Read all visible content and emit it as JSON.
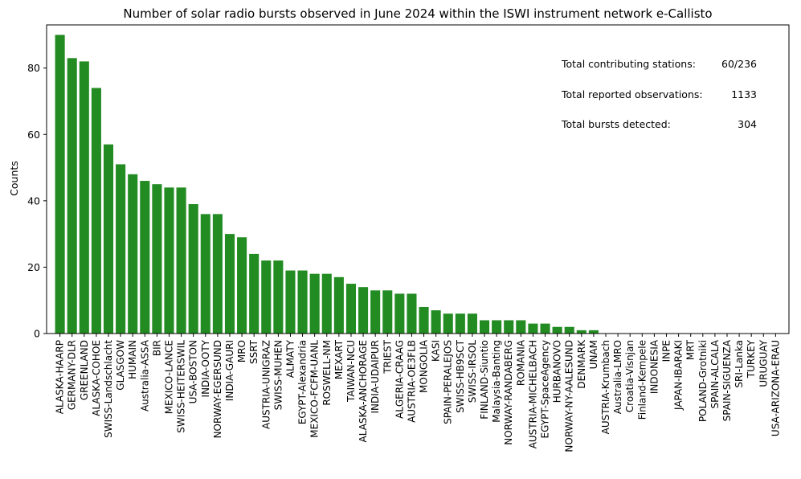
{
  "chart_data": {
    "type": "bar",
    "title": "Number of solar radio bursts observed in June 2024 within the ISWI instrument network e-Callisto",
    "xlabel": "",
    "ylabel": "Counts",
    "ylim": [
      0,
      93
    ],
    "yticks": [
      0,
      20,
      40,
      60,
      80
    ],
    "bar_color": "#228b22",
    "grid": false,
    "categories": [
      "ALASKA-HAARP",
      "GERMANY-DLR",
      "GREENLAND",
      "ALASKA-COHOE",
      "SWISS-Landschlacht",
      "GLASGOW",
      "HUMAIN",
      "Australia-ASSA",
      "BIR",
      "MEXICO-LANCE",
      "SWISS-HEITERSWIL",
      "USA-BOSTON",
      "INDIA-OOTY",
      "NORWAY-EGERSUND",
      "INDIA-GAURI",
      "MRO",
      "SSRT",
      "AUSTRIA-UNIGRAZ",
      "SWISS-MUHEN",
      "ALMATY",
      "EGYPT-Alexandria",
      "MEXICO-FCFM-UANL",
      "ROSWELL-NM",
      "MEXART",
      "TAIWAN-NCU",
      "ALASKA-ANCHORAGE",
      "INDIA-UDAIPUR",
      "TRIEST",
      "ALGERIA-CRAAG",
      "AUSTRIA-OE3FLB",
      "MONGOLIA",
      "KASI",
      "SPAIN-PERALEJOS",
      "SWISS-HB9SCT",
      "SWISS-IRSOL",
      "FINLAND-Siuntio",
      "Malaysia-Banting",
      "NORWAY-RANDABERG",
      "ROMANIA",
      "AUSTRIA-MICHELBACH",
      "EGYPT-SpaceAgency",
      "HURBANOVO",
      "NORWAY-NY-AALESUND",
      "DENMARK",
      "UNAM",
      "AUSTRIA-Krumbach",
      "Australia-LMRO",
      "Croatia-Visnjan",
      "Finland-Kempele",
      "INDONESIA",
      "INPE",
      "JAPAN-IBARAKI",
      "MRT",
      "POLAND-Grotniki",
      "SPAIN-ALCALA",
      "SPAIN-SIGUENZA",
      "SRI-Lanka",
      "TURKEY",
      "URUGUAY",
      "USA-ARIZONA-ERAU"
    ],
    "values": [
      90,
      83,
      82,
      74,
      57,
      51,
      48,
      46,
      45,
      44,
      44,
      39,
      36,
      36,
      30,
      29,
      24,
      22,
      22,
      19,
      19,
      18,
      18,
      17,
      15,
      14,
      13,
      13,
      12,
      12,
      8,
      7,
      6,
      6,
      6,
      4,
      4,
      4,
      4,
      3,
      3,
      2,
      2,
      1,
      1,
      0,
      0,
      0,
      0,
      0,
      0,
      0,
      0,
      0,
      0,
      0,
      0,
      0,
      0,
      0
    ],
    "annotations": [
      {
        "label": "Total contributing stations:",
        "value": "60/236"
      },
      {
        "label": "Total reported observations:",
        "value": "1133"
      },
      {
        "label": "Total bursts detected:",
        "value": "304"
      }
    ]
  }
}
